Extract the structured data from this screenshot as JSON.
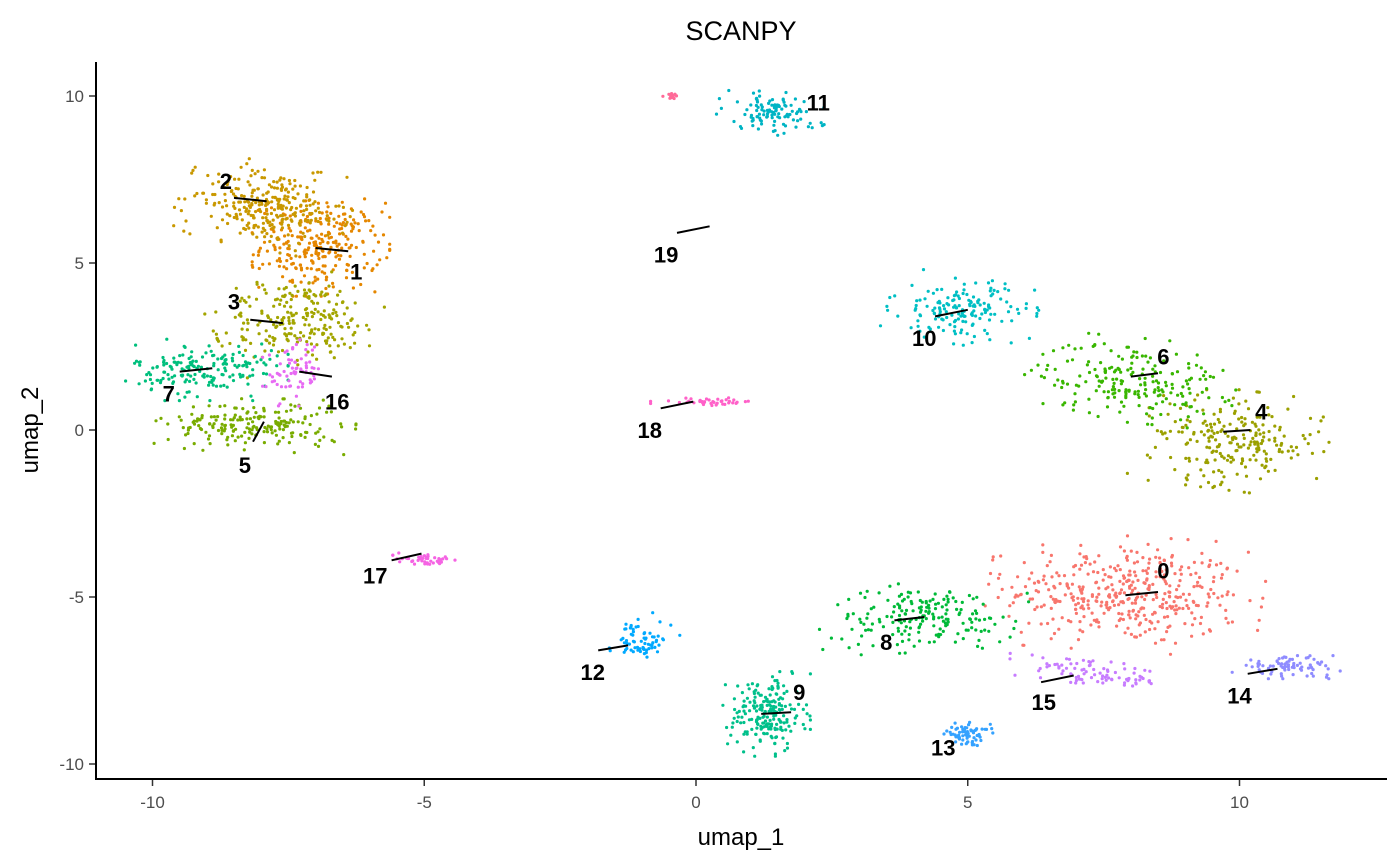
{
  "chart_data": {
    "type": "scatter",
    "title": "SCANPY",
    "xlabel": "umap_1",
    "ylabel": "umap_2",
    "xlim": [
      -11,
      12.7
    ],
    "ylim": [
      -10.5,
      11
    ],
    "x_ticks": [
      -10,
      -5,
      0,
      5,
      10
    ],
    "y_ticks": [
      -10,
      -5,
      0,
      5,
      10
    ],
    "x_tick_labels": [
      "-10",
      "-5",
      "0",
      "5",
      "10"
    ],
    "y_tick_labels": [
      "-10",
      "-5",
      "0",
      "5",
      "10"
    ],
    "legend": "none",
    "grid": false,
    "clusters": [
      {
        "id": "0",
        "color": "#F8766D",
        "n": 420,
        "cx": 7.9,
        "cy": -4.9,
        "sx": 1.1,
        "sy": 0.75,
        "rot": -0.1,
        "lx": 8.6,
        "ly": -4.2,
        "lead": [
          [
            7.9,
            -4.95
          ],
          [
            8.5,
            -4.85
          ]
        ]
      },
      {
        "id": "1",
        "color": "#E58700",
        "n": 260,
        "cx": -6.9,
        "cy": 5.5,
        "sx": 0.55,
        "sy": 0.65,
        "rot": 0,
        "lx": -6.25,
        "ly": 4.75,
        "lead": [
          [
            -6.4,
            5.35
          ],
          [
            -7.0,
            5.45
          ]
        ]
      },
      {
        "id": "2",
        "color": "#C99800",
        "n": 280,
        "cx": -7.9,
        "cy": 6.7,
        "sx": 0.7,
        "sy": 0.55,
        "rot": -0.3,
        "lx": -8.65,
        "ly": 7.45,
        "lead": [
          [
            -8.5,
            6.95
          ],
          [
            -7.9,
            6.85
          ]
        ]
      },
      {
        "id": "3",
        "color": "#A3A500",
        "n": 230,
        "cx": -7.3,
        "cy": 3.3,
        "sx": 0.7,
        "sy": 0.6,
        "rot": 0.3,
        "lx": -8.5,
        "ly": 3.85,
        "lead": [
          [
            -8.2,
            3.3
          ],
          [
            -7.6,
            3.2
          ]
        ]
      },
      {
        "id": "4",
        "color": "#9BA000",
        "n": 230,
        "cx": 9.9,
        "cy": -0.3,
        "sx": 0.75,
        "sy": 0.65,
        "rot": -0.2,
        "lx": 10.4,
        "ly": 0.55,
        "lead": [
          [
            9.7,
            -0.05
          ],
          [
            10.2,
            0.0
          ]
        ]
      },
      {
        "id": "5",
        "color": "#79AC00",
        "n": 200,
        "cx": -8.1,
        "cy": 0.15,
        "sx": 0.8,
        "sy": 0.35,
        "rot": -0.05,
        "lx": -8.3,
        "ly": -1.05,
        "lead": [
          [
            -8.15,
            -0.35
          ],
          [
            -7.95,
            0.25
          ]
        ]
      },
      {
        "id": "6",
        "color": "#39B600",
        "n": 210,
        "cx": 8.0,
        "cy": 1.5,
        "sx": 0.85,
        "sy": 0.55,
        "rot": -0.15,
        "lx": 8.6,
        "ly": 2.2,
        "lead": [
          [
            8.0,
            1.6
          ],
          [
            8.5,
            1.7
          ]
        ]
      },
      {
        "id": "7",
        "color": "#00BF7D",
        "n": 180,
        "cx": -9.0,
        "cy": 1.8,
        "sx": 0.65,
        "sy": 0.4,
        "rot": 0,
        "lx": -9.7,
        "ly": 1.1,
        "lead": [
          [
            -9.5,
            1.75
          ],
          [
            -8.9,
            1.85
          ]
        ]
      },
      {
        "id": "8",
        "color": "#00BA38",
        "n": 190,
        "cx": 4.2,
        "cy": -5.6,
        "sx": 0.85,
        "sy": 0.45,
        "rot": 0.1,
        "lx": 3.5,
        "ly": -6.35,
        "lead": [
          [
            3.65,
            -5.7
          ],
          [
            4.2,
            -5.6
          ]
        ]
      },
      {
        "id": "9",
        "color": "#00C08B",
        "n": 210,
        "cx": 1.3,
        "cy": -8.5,
        "sx": 0.35,
        "sy": 0.55,
        "rot": 0,
        "lx": 1.9,
        "ly": -7.85,
        "lead": [
          [
            1.2,
            -8.5
          ],
          [
            1.75,
            -8.45
          ]
        ]
      },
      {
        "id": "10",
        "color": "#00BFC4",
        "n": 160,
        "cx": 4.9,
        "cy": 3.6,
        "sx": 0.6,
        "sy": 0.45,
        "rot": -0.2,
        "lx": 4.2,
        "ly": 2.75,
        "lead": [
          [
            4.4,
            3.4
          ],
          [
            5.0,
            3.6
          ]
        ]
      },
      {
        "id": "11",
        "color": "#00B4C4",
        "n": 110,
        "cx": 1.4,
        "cy": 9.5,
        "sx": 0.45,
        "sy": 0.28,
        "rot": -0.2,
        "lx": 2.25,
        "ly": 9.8,
        "lead": []
      },
      {
        "id": "12",
        "color": "#00A9FF",
        "n": 70,
        "cx": -1.0,
        "cy": -6.3,
        "sx": 0.3,
        "sy": 0.28,
        "rot": 0.5,
        "lx": -1.9,
        "ly": -7.25,
        "lead": [
          [
            -1.8,
            -6.6
          ],
          [
            -1.25,
            -6.45
          ]
        ]
      },
      {
        "id": "13",
        "color": "#35A2FF",
        "n": 70,
        "cx": 5.0,
        "cy": -9.1,
        "sx": 0.2,
        "sy": 0.15,
        "rot": 0,
        "lx": 4.55,
        "ly": -9.5,
        "lead": []
      },
      {
        "id": "14",
        "color": "#8F8CFF",
        "n": 80,
        "cx": 10.9,
        "cy": -7.1,
        "sx": 0.45,
        "sy": 0.15,
        "rot": 0,
        "lx": 10.0,
        "ly": -7.95,
        "lead": [
          [
            10.15,
            -7.3
          ],
          [
            10.7,
            -7.15
          ]
        ]
      },
      {
        "id": "15",
        "color": "#C77CFF",
        "n": 90,
        "cx": 7.3,
        "cy": -7.3,
        "sx": 0.7,
        "sy": 0.18,
        "rot": -0.2,
        "lx": 6.4,
        "ly": -8.15,
        "lead": [
          [
            6.35,
            -7.55
          ],
          [
            6.95,
            -7.35
          ]
        ]
      },
      {
        "id": "16",
        "color": "#E76BF3",
        "n": 70,
        "cx": -7.4,
        "cy": 1.75,
        "sx": 0.25,
        "sy": 0.45,
        "rot": 0,
        "lx": -6.6,
        "ly": 0.85,
        "lead": [
          [
            -7.3,
            1.75
          ],
          [
            -6.7,
            1.6
          ]
        ]
      },
      {
        "id": "17",
        "color": "#F564E3",
        "n": 45,
        "cx": -4.9,
        "cy": -3.9,
        "sx": 0.3,
        "sy": 0.07,
        "rot": -0.1,
        "lx": -5.9,
        "ly": -4.35,
        "lead": [
          [
            -5.6,
            -3.9
          ],
          [
            -5.05,
            -3.7
          ]
        ]
      },
      {
        "id": "18",
        "color": "#FF61C9",
        "n": 40,
        "cx": 0.2,
        "cy": 0.85,
        "sx": 0.45,
        "sy": 0.05,
        "rot": 0,
        "lx": -0.85,
        "ly": 0.0,
        "lead": [
          [
            -0.65,
            0.65
          ],
          [
            -0.05,
            0.85
          ]
        ]
      },
      {
        "id": "19",
        "color": "#FF6A98",
        "n": 12,
        "cx": -0.45,
        "cy": 10.0,
        "sx": 0.07,
        "sy": 0.05,
        "rot": 0,
        "lx": -0.55,
        "ly": 5.25,
        "lead": [
          [
            -0.35,
            5.9
          ],
          [
            0.25,
            6.1
          ]
        ]
      }
    ]
  }
}
